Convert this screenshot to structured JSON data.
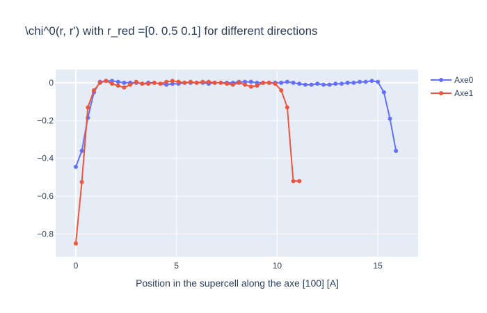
{
  "chart_data": {
    "type": "line",
    "title": "\\chi^0(r, r') with r_red =[0.  0.5 0.1] for different directions",
    "xlabel": "Position in the supercell along the axe [100] [A]",
    "ylabel": "",
    "xlim": [
      -1,
      17
    ],
    "ylim": [
      -0.92,
      0.07
    ],
    "xticks": [
      0,
      5,
      10,
      15
    ],
    "yticks": [
      0,
      -0.2,
      -0.4,
      -0.6,
      -0.8
    ],
    "xtick_labels": [
      "0",
      "5",
      "10",
      "15"
    ],
    "ytick_labels": [
      "0",
      "−0.2",
      "−0.4",
      "−0.6",
      "−0.8"
    ],
    "grid": true,
    "legend_position": "top-right",
    "background_color": "#e5ecf6",
    "series": [
      {
        "name": "Axe0",
        "color": "#636efa",
        "x": [
          0,
          0.3,
          0.6,
          0.9,
          1.2,
          1.5,
          1.8,
          2.1,
          2.4,
          2.7,
          3.0,
          3.3,
          3.6,
          3.9,
          4.2,
          4.5,
          4.8,
          5.1,
          5.4,
          5.7,
          6.0,
          6.3,
          6.6,
          6.9,
          7.2,
          7.5,
          7.8,
          8.1,
          8.4,
          8.7,
          9.0,
          9.3,
          9.6,
          9.9,
          10.2,
          10.5,
          10.8,
          11.1,
          11.4,
          11.7,
          12.0,
          12.3,
          12.6,
          12.9,
          13.2,
          13.5,
          13.8,
          14.1,
          14.4,
          14.7,
          15.0,
          15.3,
          15.6,
          15.9
        ],
        "y": [
          -0.445,
          -0.36,
          -0.185,
          -0.05,
          0.005,
          0.01,
          0.01,
          0.005,
          0.0,
          0.0,
          0.0,
          -0.005,
          0.0,
          0.0,
          -0.005,
          -0.01,
          -0.005,
          -0.005,
          0.0,
          0.0,
          0.0,
          0.0,
          -0.005,
          0.0,
          0.0,
          0.0,
          0.0,
          0.005,
          0.005,
          0.005,
          0.0,
          0.0,
          0.0,
          0.0,
          0.0,
          0.005,
          0.0,
          -0.005,
          -0.01,
          -0.01,
          -0.005,
          -0.01,
          -0.01,
          -0.005,
          -0.005,
          0.0,
          0.0,
          0.005,
          0.005,
          0.01,
          0.005,
          -0.05,
          -0.19,
          -0.36
        ]
      },
      {
        "name": "Axe1",
        "color": "#ef553b",
        "x": [
          0,
          0.3,
          0.6,
          0.9,
          1.2,
          1.5,
          1.8,
          2.1,
          2.4,
          2.7,
          3.0,
          3.3,
          3.6,
          3.9,
          4.2,
          4.5,
          4.8,
          5.1,
          5.4,
          5.7,
          6.0,
          6.3,
          6.6,
          6.9,
          7.2,
          7.5,
          7.8,
          8.1,
          8.4,
          8.7,
          9.0,
          9.3,
          9.6,
          9.9,
          10.2,
          10.5,
          10.8,
          11.1
        ],
        "y": [
          -0.85,
          -0.525,
          -0.13,
          -0.04,
          0.0,
          0.01,
          -0.005,
          -0.015,
          -0.025,
          -0.01,
          0.005,
          -0.005,
          -0.005,
          0.0,
          -0.005,
          0.005,
          0.01,
          0.005,
          0.0,
          0.005,
          0.0,
          0.005,
          0.005,
          0.0,
          0.0,
          -0.005,
          -0.01,
          0.0,
          -0.01,
          -0.02,
          -0.015,
          0.0,
          0.0,
          -0.005,
          -0.04,
          -0.13,
          -0.52,
          -0.52
        ]
      }
    ]
  }
}
